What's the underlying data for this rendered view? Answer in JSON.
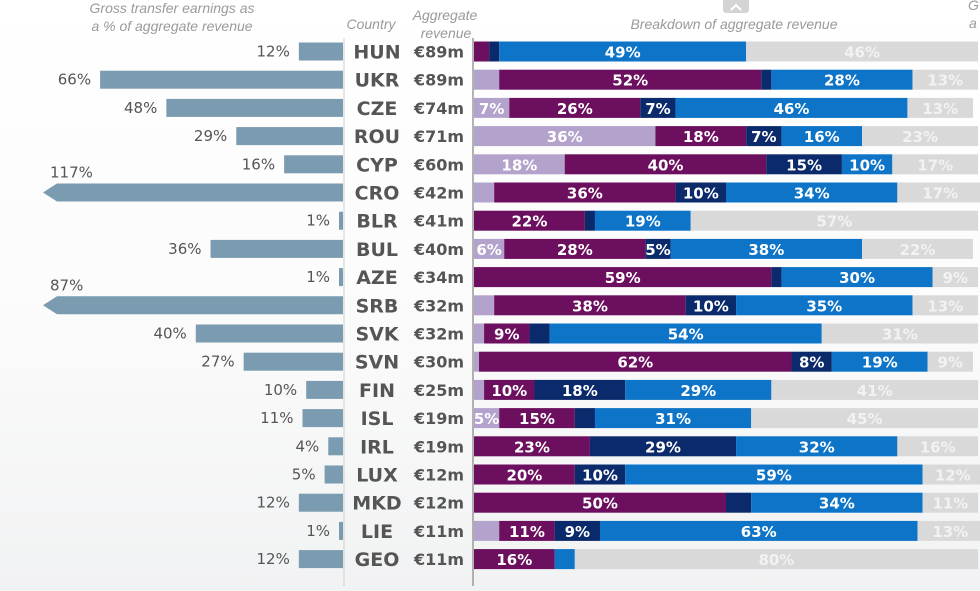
{
  "headers": {
    "left": [
      "Gross transfer earnings as",
      "a % of aggregate revenue"
    ],
    "country": "Country",
    "revenue": [
      "Aggregate",
      "revenue"
    ],
    "breakdown": "Breakdown of aggregate revenue",
    "right_clip": [
      "G",
      "a"
    ]
  },
  "colors": {
    "left_bar": "#7a9bb0",
    "seg_light_purple": "#b3a3cc",
    "seg_purple": "#6b0f5e",
    "seg_navy": "#0b2a6b",
    "seg_blue": "#0d74c8",
    "seg_grey": "#d9d9d9",
    "grey_label": "#f2f2f2"
  },
  "icons": {
    "scroll_up": "chevron-up-icon"
  },
  "chart_data": [
    {
      "type": "bar",
      "orientation": "horizontal",
      "title": "Gross transfer earnings as a % of aggregate revenue",
      "categories": [
        "HUN",
        "UKR",
        "CZE",
        "ROU",
        "CYP",
        "CRO",
        "BLR",
        "BUL",
        "AZE",
        "SRB",
        "SVK",
        "SVN",
        "FIN",
        "ISL",
        "IRL",
        "LUX",
        "MKD",
        "LIE",
        "GEO"
      ],
      "values": [
        12,
        66,
        48,
        29,
        16,
        117,
        1,
        36,
        1,
        87,
        40,
        27,
        10,
        11,
        4,
        5,
        12,
        1,
        12
      ],
      "labels": [
        "12%",
        "66%",
        "48%",
        "29%",
        "16%",
        "117%",
        "1%",
        "36%",
        "1%",
        "87%",
        "40%",
        "27%",
        "10%",
        "11%",
        "4%",
        "5%",
        "12%",
        "1%",
        "12%"
      ],
      "truncated": [
        "CRO",
        "SRB"
      ]
    },
    {
      "type": "table",
      "title": "Aggregate revenue",
      "columns": [
        "Country",
        "Aggregate revenue"
      ],
      "rows": [
        [
          "HUN",
          "€89m"
        ],
        [
          "UKR",
          "€89m"
        ],
        [
          "CZE",
          "€74m"
        ],
        [
          "ROU",
          "€71m"
        ],
        [
          "CYP",
          "€60m"
        ],
        [
          "CRO",
          "€42m"
        ],
        [
          "BLR",
          "€41m"
        ],
        [
          "BUL",
          "€40m"
        ],
        [
          "AZE",
          "€34m"
        ],
        [
          "SRB",
          "€32m"
        ],
        [
          "SVK",
          "€32m"
        ],
        [
          "SVN",
          "€30m"
        ],
        [
          "FIN",
          "€25m"
        ],
        [
          "ISL",
          "€19m"
        ],
        [
          "IRL",
          "€19m"
        ],
        [
          "LUX",
          "€12m"
        ],
        [
          "MKD",
          "€12m"
        ],
        [
          "LIE",
          "€11m"
        ],
        [
          "GEO",
          "€11m"
        ]
      ]
    },
    {
      "type": "bar",
      "orientation": "horizontal",
      "stacked": true,
      "title": "Breakdown of aggregate revenue",
      "unit": "%",
      "categories": [
        "HUN",
        "UKR",
        "CZE",
        "ROU",
        "CYP",
        "CRO",
        "BLR",
        "BUL",
        "AZE",
        "SRB",
        "SVK",
        "SVN",
        "FIN",
        "ISL",
        "IRL",
        "LUX",
        "MKD",
        "LIE",
        "GEO"
      ],
      "series": [
        {
          "values": [
            0,
            5,
            7,
            36,
            18,
            4,
            0,
            6,
            0,
            4,
            2,
            1,
            2,
            5,
            0,
            0,
            0,
            5,
            0
          ],
          "labels": [
            "",
            "",
            "7%",
            "36%",
            "18%",
            "",
            "",
            "6%",
            "",
            "",
            "",
            "",
            "",
            "5%",
            "",
            "",
            "",
            "",
            ""
          ]
        },
        {
          "values": [
            3,
            52,
            26,
            18,
            40,
            36,
            22,
            28,
            59,
            38,
            9,
            62,
            10,
            15,
            23,
            20,
            50,
            11,
            16
          ],
          "labels": [
            "",
            "52%",
            "26%",
            "18%",
            "40%",
            "36%",
            "22%",
            "28%",
            "59%",
            "38%",
            "9%",
            "62%",
            "10%",
            "15%",
            "23%",
            "20%",
            "50%",
            "11%",
            "16%"
          ]
        },
        {
          "values": [
            2,
            2,
            7,
            7,
            15,
            10,
            2,
            5,
            2,
            10,
            4,
            8,
            18,
            4,
            29,
            10,
            5,
            9,
            0
          ],
          "labels": [
            "",
            "",
            "7%",
            "7%",
            "15%",
            "10%",
            "",
            "5%",
            "",
            "10%",
            "",
            "8%",
            "18%",
            "",
            "29%",
            "10%",
            "",
            "9%",
            ""
          ]
        },
        {
          "values": [
            49,
            28,
            46,
            16,
            10,
            34,
            19,
            38,
            30,
            35,
            54,
            19,
            29,
            31,
            32,
            59,
            34,
            63,
            4
          ],
          "labels": [
            "49%",
            "28%",
            "46%",
            "16%",
            "10%",
            "34%",
            "19%",
            "38%",
            "30%",
            "35%",
            "54%",
            "19%",
            "29%",
            "31%",
            "32%",
            "59%",
            "34%",
            "63%",
            ""
          ]
        },
        {
          "values": [
            46,
            13,
            13,
            23,
            17,
            17,
            57,
            22,
            9,
            13,
            31,
            9,
            41,
            45,
            16,
            12,
            11,
            13,
            80
          ],
          "labels": [
            "46%",
            "13%",
            "13%",
            "23%",
            "17%",
            "17%",
            "57%",
            "22%",
            "9%",
            "13%",
            "31%",
            "9%",
            "41%",
            "45%",
            "16%",
            "12%",
            "11%",
            "13%",
            "80%"
          ]
        }
      ]
    }
  ]
}
